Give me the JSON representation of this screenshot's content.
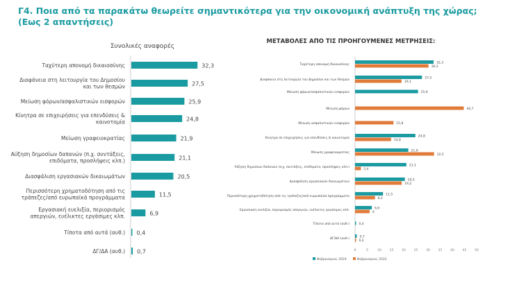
{
  "title_line1": "Γ4. Ποια από τα παρακάτω θεωρείτε σημαντικότερα για την οικονομική ανάπτυξη της χώρας;",
  "title_line2": "(Εως 2 απαντήσεις)",
  "colors": {
    "teal": "#1a9ba1",
    "orange": "#e07b39"
  },
  "chart_data": [
    {
      "type": "bar",
      "orientation": "horizontal",
      "title": "Συνολικές αναφορές",
      "categories": [
        "Ταχύτερη απονομή δικαιοσύνης",
        "Διαφάνεια στη λειτουργία του Δημοσίου και των θεσμών",
        "Μείωση φόρων/ασφαλιστικών εισφορών",
        "Κίνητρα σε επιχειρήσεις για επενδύσεις & καινοτομία",
        "Μείωση γραφειοκρατίας",
        "Αύξηση δημοσίων δαπανών (π.χ. συντάξεις, επιδόματα, προσλήψεις κλπ.)",
        "Διασφάλιση εργασιακών δικαιωμάτων",
        "Περισσότερη χρηματοδότηση από τις τράπεζες/από ευρωπαϊκά προγράμματα",
        "Εργασιακή ευελιξία, περιορισμός απεργιών, ευέλικτες εργάσιμες κλπ.",
        "Τίποτα από αυτά (αυθ.)",
        "ΔΓ/ΔΑ (αυθ.)"
      ],
      "values": [
        32.3,
        27.5,
        25.9,
        24.8,
        21.9,
        21.1,
        20.5,
        11.5,
        6.9,
        0.4,
        0.7
      ],
      "value_labels": [
        "32,3",
        "27,5",
        "25,9",
        "24,8",
        "21,9",
        "21,1",
        "20,5",
        "11,5",
        "6,9",
        "0,4",
        "0,7"
      ]
    },
    {
      "type": "bar",
      "orientation": "horizontal",
      "title": "ΜΕΤΑΒΟΛΕΣ ΑΠΟ ΤΙΣ ΠΡΟΗΓΟΥΜΕΝΕΣ ΜΕΤΡΗΣΕΙΣ:",
      "categories": [
        "Ταχύτερη απονομή δικαιοσύνης",
        "Διαφάνεια στη λειτουργία του Δημοσίου και των θεσμών",
        "Μείωση φόρων/ασφαλιστικών εισφορών",
        "Μείωση φόρων",
        "Μείωση ασφαλιστικών εισφορών",
        "Κίνητρα σε επιχειρήσεις για επενδύσεις & καινοτομία",
        "Μείωση γραφειοκρατίας",
        "Αύξηση δημοσίων δαπανών (π.χ. συντάξεις, επιδόματα, προσλήψεις κλπ.)",
        "Διασφάλιση εργασιακών δικαιωμάτων",
        "Περισσότερη χρηματοδότηση από τις τράπεζες/από ευρωπαϊκά προγράμματα",
        "Εργασιακή ευελιξία, περιορισμός απεργιών, ευέλικτες εργάσιμες κλπ.",
        "Τίποτα από αυτά (αυθ.)",
        "ΔΓ/ΔΑ (αυθ.)"
      ],
      "series": [
        {
          "name": "Φεβρουάριος 2024",
          "values": [
            32.3,
            27.5,
            25.9,
            null,
            null,
            24.8,
            21.9,
            21.1,
            20.5,
            11.5,
            6.9,
            0.4,
            0.7
          ]
        },
        {
          "name": "Φεβρουάριος 2022",
          "values": [
            30.2,
            19.1,
            null,
            44.7,
            15.8,
            14.8,
            32.5,
            2.4,
            19.2,
            8.2,
            6.0,
            null,
            0.2
          ]
        }
      ],
      "xlim": [
        0,
        50
      ],
      "xticks": [
        0,
        5,
        10,
        15,
        20,
        25,
        30,
        35,
        40,
        45,
        50
      ],
      "legend": "bottom",
      "grid": false
    }
  ]
}
